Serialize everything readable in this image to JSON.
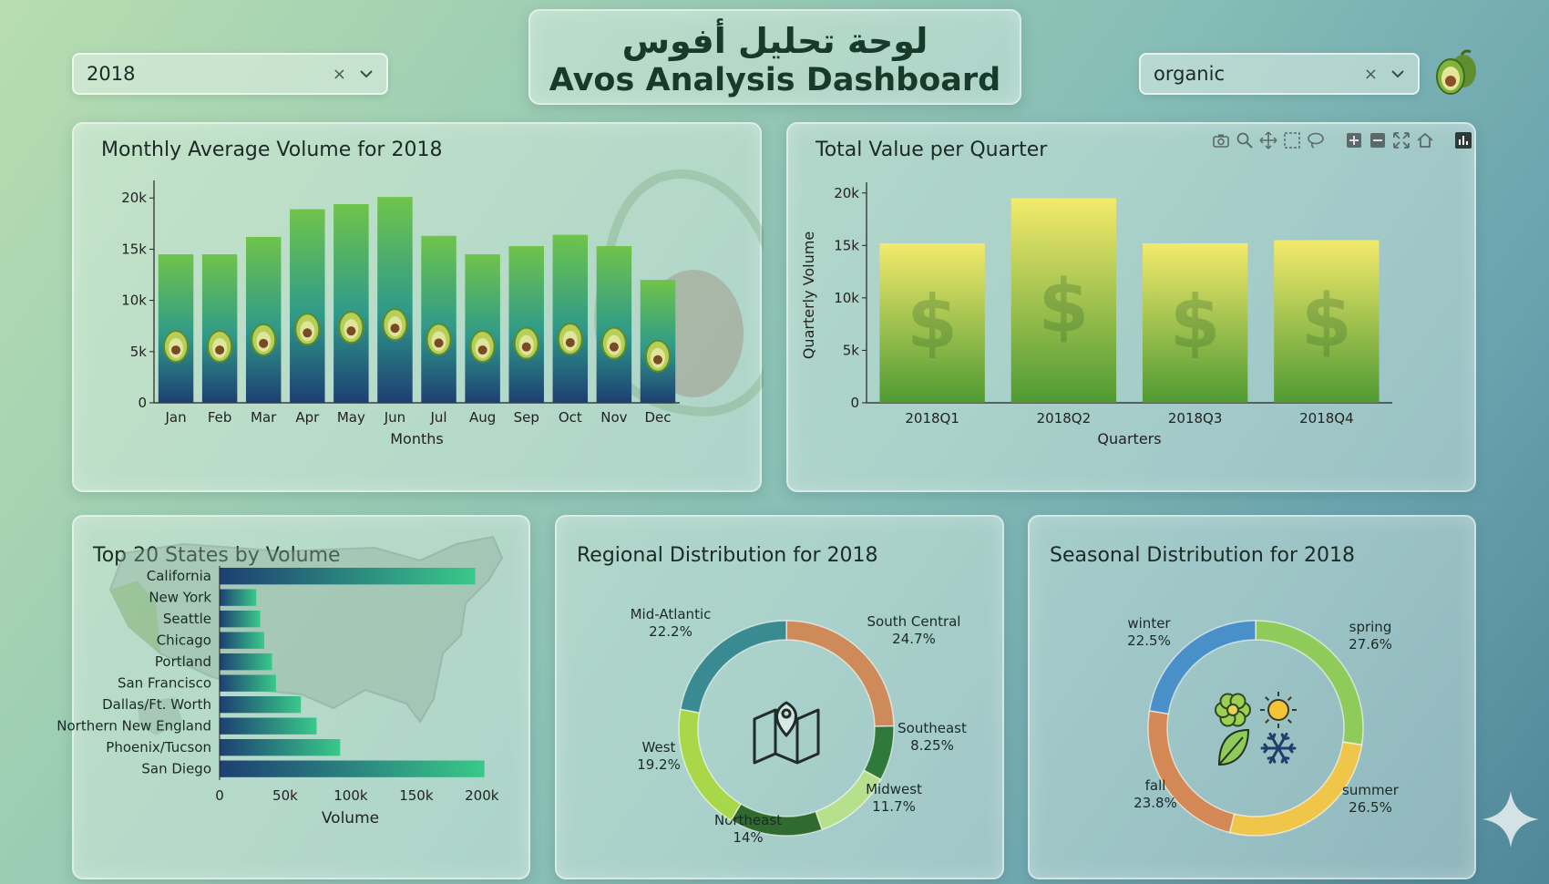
{
  "header": {
    "title_ar": "لوحة تحليل أفوس",
    "title_en": "Avos Analysis Dashboard",
    "logo_icon": "avocado-icon"
  },
  "filters": {
    "year": {
      "value": "2018",
      "clear_label": "×"
    },
    "type": {
      "value": "organic",
      "clear_label": "×"
    }
  },
  "modebar": {
    "icons": [
      "camera-icon",
      "zoom-icon",
      "pan-icon",
      "box-select-icon",
      "lasso-icon",
      "zoom-in-icon",
      "zoom-out-icon",
      "autoscale-icon",
      "home-icon",
      "plotly-logo-icon"
    ]
  },
  "chart_data": [
    {
      "id": "monthly",
      "type": "bar",
      "title": "Monthly Average Volume for 2018",
      "xlabel": "Months",
      "ylabel": "",
      "categories": [
        "Jan",
        "Feb",
        "Mar",
        "Apr",
        "May",
        "Jun",
        "Jul",
        "Aug",
        "Sep",
        "Oct",
        "Nov",
        "Dec"
      ],
      "values": [
        14500,
        14500,
        16200,
        18900,
        19400,
        20100,
        16300,
        14500,
        15300,
        16400,
        15300,
        12000
      ],
      "ylim": [
        0,
        21000
      ],
      "yticks": [
        0,
        5000,
        10000,
        15000,
        20000
      ],
      "ytick_labels": [
        "0",
        "5k",
        "10k",
        "15k",
        "20k"
      ],
      "colors": {
        "top": "#6fc44a",
        "mid": "#2f9a8a",
        "bottom": "#1d3f72"
      }
    },
    {
      "id": "quarterly",
      "type": "bar",
      "title": "Total Value per Quarter",
      "xlabel": "Quarters",
      "ylabel": "Quarterly Volume",
      "categories": [
        "2018Q1",
        "2018Q2",
        "2018Q3",
        "2018Q4"
      ],
      "values": [
        15200,
        19500,
        15200,
        15500
      ],
      "ylim": [
        0,
        20500
      ],
      "yticks": [
        0,
        5000,
        10000,
        15000,
        20000
      ],
      "ytick_labels": [
        "0",
        "5k",
        "10k",
        "15k",
        "20k"
      ],
      "symbol": "$",
      "colors": {
        "top": "#f3ea6c",
        "bottom": "#4f9a33"
      }
    },
    {
      "id": "states",
      "type": "bar",
      "orientation": "horizontal",
      "title": "Top 20 States by Volume",
      "xlabel": "Volume",
      "categories": [
        "California",
        "New York",
        "Seattle",
        "Chicago",
        "Portland",
        "San Francisco",
        "Dallas/Ft. Worth",
        "Northern New England",
        "Phoenix/Tucson",
        "San Diego"
      ],
      "values": [
        195000,
        28000,
        31000,
        34000,
        40000,
        43000,
        62000,
        74000,
        92000,
        202000
      ],
      "xlim": [
        0,
        205000
      ],
      "xticks": [
        0,
        50000,
        100000,
        150000,
        200000
      ],
      "xtick_labels": [
        "0",
        "50k",
        "100k",
        "150k",
        "200k"
      ],
      "colors": {
        "left": "#1d3f72",
        "right": "#39c98a"
      }
    },
    {
      "id": "regional",
      "type": "pie",
      "hole": true,
      "title": "Regional Distribution for 2018",
      "center_icon": "map-pin-icon",
      "slices": [
        {
          "label": "South Central",
          "value": 24.7,
          "text": "24.7%",
          "color": "#cf8a5a"
        },
        {
          "label": "Southeast",
          "value": 8.25,
          "text": "8.25%",
          "color": "#2f7a3b"
        },
        {
          "label": "Midwest",
          "value": 11.7,
          "text": "11.7%",
          "color": "#b6e08c"
        },
        {
          "label": "Northeast",
          "value": 14,
          "text": "14%",
          "color": "#2f6b2f"
        },
        {
          "label": "West",
          "value": 19.2,
          "text": "19.2%",
          "color": "#a8d84a"
        },
        {
          "label": "Mid-Atlantic",
          "value": 22.2,
          "text": "22.2%",
          "color": "#3a8a92"
        }
      ]
    },
    {
      "id": "seasonal",
      "type": "pie",
      "hole": true,
      "title": "Seasonal Distribution for 2018",
      "center_icons": [
        "flower-icon",
        "sun-icon",
        "leaf-icon",
        "snowflake-icon"
      ],
      "slices": [
        {
          "label": "spring",
          "value": 27.6,
          "text": "27.6%",
          "color": "#8fcb5a"
        },
        {
          "label": "summer",
          "value": 26.5,
          "text": "26.5%",
          "color": "#f0c64a"
        },
        {
          "label": "fall",
          "value": 23.8,
          "text": "23.8%",
          "color": "#d38855"
        },
        {
          "label": "winter",
          "value": 22.5,
          "text": "22.5%",
          "color": "#4a90c8"
        }
      ]
    }
  ]
}
